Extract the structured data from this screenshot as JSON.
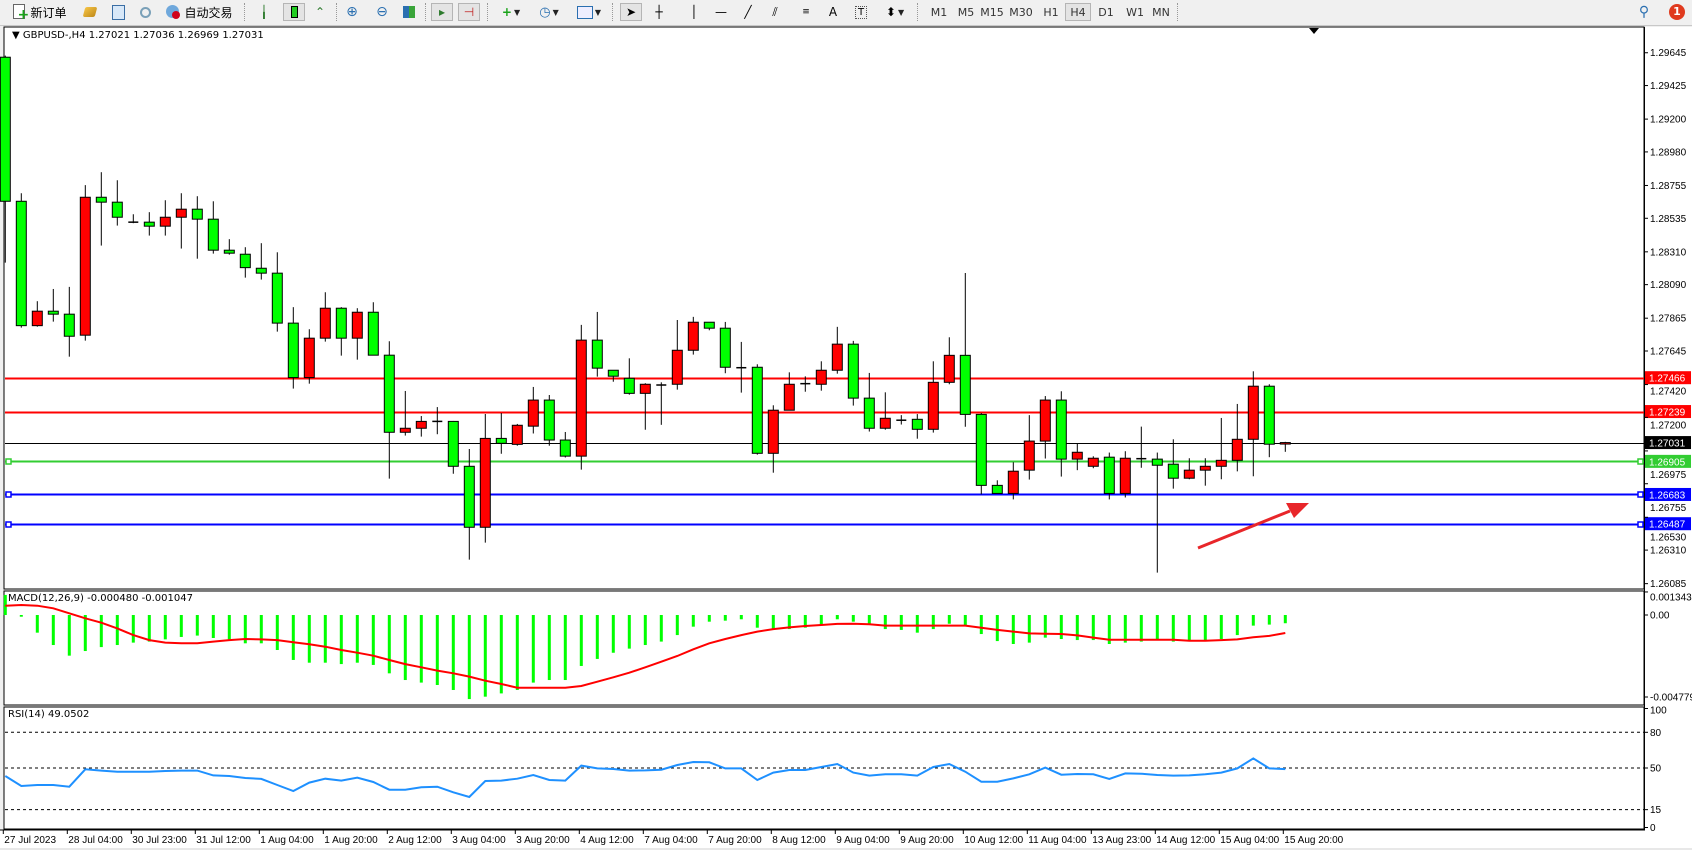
{
  "toolbar": {
    "new_order_label": "新订单",
    "auto_trading_label": "自动交易",
    "timeframes": [
      "M1",
      "M5",
      "M15",
      "M30",
      "H1",
      "H4",
      "D1",
      "W1",
      "MN"
    ],
    "active_timeframe": "H4",
    "notification_count": "1"
  },
  "chart": {
    "header": "GBPUSD-,H4  1.27021 1.27036 1.26969 1.27031",
    "macd_title": "MACD(12,26,9) -0.000480 -0.001047",
    "rsi_title": "RSI(14) 49.0502",
    "price_ticks": [
      "1.29645",
      "1.29425",
      "1.29200",
      "1.28980",
      "1.28755",
      "1.28535",
      "1.28310",
      "1.28090",
      "1.27865",
      "1.27645",
      "1.27420",
      "1.27200",
      "1.26975",
      "1.26755",
      "1.26530",
      "1.26310",
      "1.26085"
    ],
    "macd_ticks": [
      "0.001343",
      "0.00",
      "-0.004779"
    ],
    "rsi_ticks": [
      "100",
      "80",
      "50",
      "15",
      "0"
    ],
    "hlines": [
      {
        "price": "1.27466",
        "color": "#ff0000",
        "marker": false
      },
      {
        "price": "1.27239",
        "color": "#ff0000",
        "marker": false
      },
      {
        "price": "1.27031",
        "color": "#000000",
        "marker": false
      },
      {
        "price": "1.26905",
        "color": "#32cd32",
        "marker": true
      },
      {
        "price": "1.26683",
        "color": "#0000ff",
        "marker": true
      },
      {
        "price": "1.26487",
        "color": "#0000ff",
        "marker": true
      }
    ],
    "time_labels": [
      "27 Jul 2023",
      "28 Jul 04:00",
      "30 Jul 23:00",
      "31 Jul 12:00",
      "1 Aug 04:00",
      "1 Aug 20:00",
      "2 Aug 12:00",
      "3 Aug 04:00",
      "3 Aug 20:00",
      "4 Aug 12:00",
      "7 Aug 04:00",
      "7 Aug 20:00",
      "8 Aug 12:00",
      "9 Aug 04:00",
      "9 Aug 20:00",
      "10 Aug 12:00",
      "11 Aug 04:00",
      "13 Aug 23:00",
      "14 Aug 12:00",
      "15 Aug 04:00",
      "15 Aug 20:00"
    ],
    "colors": {
      "bull": "#ff0000",
      "bear": "#00ff00",
      "macd_hist": "#00ff00",
      "macd_signal": "#ff0000",
      "rsi": "#1e90ff",
      "arrow": "#e8262a"
    }
  },
  "chart_data": {
    "type": "candlestick",
    "symbol": "GBPUSD-",
    "timeframe": "H4",
    "ylim": [
      1.26085,
      1.29645
    ],
    "ohlc": [
      [
        1.29615,
        1.29626,
        1.28238,
        1.28649
      ],
      [
        1.28649,
        1.28703,
        1.27802,
        1.27815
      ],
      [
        1.27815,
        1.27979,
        1.27808,
        1.27912
      ],
      [
        1.27912,
        1.28061,
        1.27842,
        1.27892
      ],
      [
        1.27892,
        1.28075,
        1.27607,
        1.27744
      ],
      [
        1.27751,
        1.28757,
        1.27715,
        1.28676
      ],
      [
        1.28676,
        1.28844,
        1.28352,
        1.28643
      ],
      [
        1.28643,
        1.2879,
        1.28486,
        1.28542
      ],
      [
        1.28509,
        1.28562,
        1.28502,
        1.28509
      ],
      [
        1.28509,
        1.28576,
        1.28419,
        1.28482
      ],
      [
        1.28482,
        1.28656,
        1.28419,
        1.28542
      ],
      [
        1.28542,
        1.28703,
        1.28332,
        1.28596
      ],
      [
        1.28596,
        1.28683,
        1.28264,
        1.28529
      ],
      [
        1.28529,
        1.28649,
        1.28298,
        1.28321
      ],
      [
        1.28321,
        1.28395,
        1.28291,
        1.28301
      ],
      [
        1.28294,
        1.28341,
        1.28137,
        1.28204
      ],
      [
        1.282,
        1.28368,
        1.28124,
        1.28167
      ],
      [
        1.28167,
        1.28307,
        1.27775,
        1.27832
      ],
      [
        1.27832,
        1.27939,
        1.27393,
        1.27467
      ],
      [
        1.27467,
        1.27791,
        1.27426,
        1.27731
      ],
      [
        1.27731,
        1.28039,
        1.27708,
        1.27932
      ],
      [
        1.27932,
        1.27939,
        1.27614,
        1.27731
      ],
      [
        1.27731,
        1.27932,
        1.27587,
        1.27905
      ],
      [
        1.27905,
        1.27972,
        1.27617,
        1.27617
      ],
      [
        1.27617,
        1.2771,
        1.26789,
        1.271
      ],
      [
        1.271,
        1.27377,
        1.27078,
        1.27127
      ],
      [
        1.27127,
        1.27209,
        1.27071,
        1.27173
      ],
      [
        1.27173,
        1.27269,
        1.27087,
        1.27173
      ],
      [
        1.27173,
        1.27176,
        1.26822,
        1.26872
      ],
      [
        1.26872,
        1.26988,
        1.26246,
        1.26463
      ],
      [
        1.26463,
        1.27223,
        1.2636,
        1.27059
      ],
      [
        1.27059,
        1.27229,
        1.26956,
        1.27026
      ],
      [
        1.27019,
        1.27156,
        1.2701,
        1.27147
      ],
      [
        1.27141,
        1.27404,
        1.27092,
        1.27316
      ],
      [
        1.27316,
        1.2735,
        1.2701,
        1.27048
      ],
      [
        1.27048,
        1.27102,
        1.26931,
        1.2694
      ],
      [
        1.2694,
        1.2782,
        1.2685,
        1.27718
      ],
      [
        1.27718,
        1.27907,
        1.27473,
        1.2753
      ],
      [
        1.27516,
        1.27516,
        1.27439,
        1.27476
      ],
      [
        1.27462,
        1.27596,
        1.27352,
        1.27361
      ],
      [
        1.27361,
        1.27429,
        1.27117,
        1.27422
      ],
      [
        1.27417,
        1.27435,
        1.2715,
        1.27417
      ],
      [
        1.27422,
        1.27853,
        1.27386,
        1.2765
      ],
      [
        1.2765,
        1.27874,
        1.27621,
        1.27838
      ],
      [
        1.27838,
        1.27838,
        1.27784,
        1.27798
      ],
      [
        1.27798,
        1.2784,
        1.27496,
        1.27536
      ],
      [
        1.27533,
        1.27706,
        1.27366,
        1.27533
      ],
      [
        1.27536,
        1.27556,
        1.2695,
        1.26959
      ],
      [
        1.26959,
        1.27281,
        1.26829,
        1.27248
      ],
      [
        1.27248,
        1.27502,
        1.27248,
        1.27422
      ],
      [
        1.27426,
        1.27475,
        1.27372,
        1.27426
      ],
      [
        1.27422,
        1.27576,
        1.27379,
        1.27516
      ],
      [
        1.27516,
        1.27807,
        1.27493,
        1.27691
      ],
      [
        1.27691,
        1.27713,
        1.27279,
        1.27329
      ],
      [
        1.27329,
        1.27498,
        1.27105,
        1.27127
      ],
      [
        1.27127,
        1.27368,
        1.27117,
        1.27194
      ],
      [
        1.27181,
        1.27215,
        1.27152,
        1.27181
      ],
      [
        1.27187,
        1.27222,
        1.27057,
        1.2712
      ],
      [
        1.2712,
        1.27576,
        1.27098,
        1.27435
      ],
      [
        1.27435,
        1.27737,
        1.27422,
        1.27616
      ],
      [
        1.27616,
        1.28168,
        1.27137,
        1.2722
      ],
      [
        1.2722,
        1.27229,
        1.26684,
        1.26744
      ],
      [
        1.26744,
        1.26778,
        1.2669,
        1.2669
      ],
      [
        1.2669,
        1.26899,
        1.2665,
        1.26839
      ],
      [
        1.26846,
        1.27215,
        1.26783,
        1.27041
      ],
      [
        1.27041,
        1.27343,
        1.26924,
        1.27316
      ],
      [
        1.27316,
        1.27375,
        1.26803,
        1.2692
      ],
      [
        1.2692,
        1.27026,
        1.26846,
        1.26966
      ],
      [
        1.26872,
        1.26939,
        1.26859,
        1.26926
      ],
      [
        1.26933,
        1.26964,
        1.2665,
        1.2669
      ],
      [
        1.2669,
        1.26973,
        1.26663,
        1.26926
      ],
      [
        1.26923,
        1.27138,
        1.26862,
        1.26923
      ],
      [
        1.2692,
        1.26964,
        1.26159,
        1.26879
      ],
      [
        1.26886,
        1.27053,
        1.26722,
        1.26792
      ],
      [
        1.26792,
        1.26926,
        1.26785,
        1.26846
      ],
      [
        1.26846,
        1.26926,
        1.26742,
        1.26872
      ],
      [
        1.26872,
        1.27196,
        1.26785,
        1.26912
      ],
      [
        1.26912,
        1.2729,
        1.26838,
        1.27053
      ],
      [
        1.27053,
        1.27509,
        1.26805,
        1.27409
      ],
      [
        1.27409,
        1.27422,
        1.26933,
        1.2702
      ],
      [
        1.27021,
        1.27036,
        1.26969,
        1.27031
      ]
    ],
    "macd": {
      "ylim": [
        -0.004779,
        0.001343
      ],
      "histogram": [
        0.00117,
        -0.0001,
        -0.00103,
        -0.00175,
        -0.00237,
        -0.0021,
        -0.00187,
        -0.00175,
        -0.00161,
        -0.00155,
        -0.00142,
        -0.00128,
        -0.0012,
        -0.00134,
        -0.00142,
        -0.00165,
        -0.00165,
        -0.00204,
        -0.00262,
        -0.00278,
        -0.00278,
        -0.00286,
        -0.00278,
        -0.00291,
        -0.0034,
        -0.00379,
        -0.00394,
        -0.00408,
        -0.00437,
        -0.0049,
        -0.00476,
        -0.00457,
        -0.00437,
        -0.00394,
        -0.00379,
        -0.00379,
        -0.00297,
        -0.00256,
        -0.0022,
        -0.00196,
        -0.00175,
        -0.00155,
        -0.00117,
        -0.00068,
        -0.00039,
        -0.00033,
        -0.00025,
        -0.00074,
        -0.00082,
        -0.00082,
        -0.00074,
        -0.00056,
        -0.00025,
        -0.00039,
        -0.00054,
        -0.00082,
        -0.00087,
        -0.00103,
        -0.00082,
        -0.00051,
        -0.00064,
        -0.00111,
        -0.00152,
        -0.00169,
        -0.00161,
        -0.00132,
        -0.0014,
        -0.00146,
        -0.00146,
        -0.00169,
        -0.00161,
        -0.00155,
        -0.00146,
        -0.00155,
        -0.00146,
        -0.0015,
        -0.0014,
        -0.00117,
        -0.00062,
        -0.00056,
        -0.00048
      ],
      "signal": [
        0.00054,
        0.00058,
        0.00054,
        0.00039,
        0.0001,
        -0.00019,
        -0.00045,
        -0.00078,
        -0.00117,
        -0.00146,
        -0.00161,
        -0.00165,
        -0.00165,
        -0.00155,
        -0.00146,
        -0.0014,
        -0.00142,
        -0.00146,
        -0.00159,
        -0.00171,
        -0.00185,
        -0.00204,
        -0.0022,
        -0.00237,
        -0.00262,
        -0.00286,
        -0.00305,
        -0.00324,
        -0.0034,
        -0.00359,
        -0.00383,
        -0.00402,
        -0.00424,
        -0.00424,
        -0.00424,
        -0.00424,
        -0.00414,
        -0.00389,
        -0.00363,
        -0.00336,
        -0.00305,
        -0.00272,
        -0.00239,
        -0.002,
        -0.00165,
        -0.0014,
        -0.00117,
        -0.00097,
        -0.00082,
        -0.00072,
        -0.00064,
        -0.00058,
        -0.00052,
        -0.00051,
        -0.00054,
        -0.00062,
        -0.00062,
        -0.00062,
        -0.00062,
        -0.00062,
        -0.00062,
        -0.00074,
        -0.00087,
        -0.00097,
        -0.00107,
        -0.00109,
        -0.00111,
        -0.00119,
        -0.00132,
        -0.00144,
        -0.00144,
        -0.00144,
        -0.00144,
        -0.00144,
        -0.0015,
        -0.0015,
        -0.00146,
        -0.00142,
        -0.0013,
        -0.00122,
        -0.001047
      ]
    },
    "rsi": {
      "ylim": [
        0,
        100
      ],
      "levels": [
        80,
        50,
        15
      ],
      "values": [
        43.3,
        34.9,
        35.7,
        35.7,
        34.3,
        48.9,
        47.8,
        46.9,
        46.9,
        46.9,
        47.5,
        47.8,
        47.8,
        43.8,
        43.3,
        41.6,
        40.8,
        35.7,
        30.7,
        37.7,
        41.0,
        39.4,
        41.9,
        38.2,
        31.8,
        31.8,
        33.8,
        34.3,
        29.6,
        25.6,
        39.1,
        39.4,
        41.0,
        44.1,
        39.9,
        39.4,
        52.0,
        49.7,
        49.2,
        47.8,
        48.0,
        48.6,
        52.5,
        55.0,
        54.8,
        49.7,
        49.7,
        39.9,
        46.1,
        48.3,
        48.3,
        50.8,
        53.4,
        46.1,
        43.6,
        44.7,
        44.7,
        43.6,
        50.8,
        53.4,
        46.9,
        38.5,
        38.5,
        41.3,
        44.7,
        50.3,
        44.4,
        45.0,
        44.7,
        40.8,
        45.5,
        45.2,
        44.1,
        43.6,
        43.8,
        44.7,
        46.1,
        49.7,
        58.1,
        49.7,
        49.05
      ]
    }
  }
}
